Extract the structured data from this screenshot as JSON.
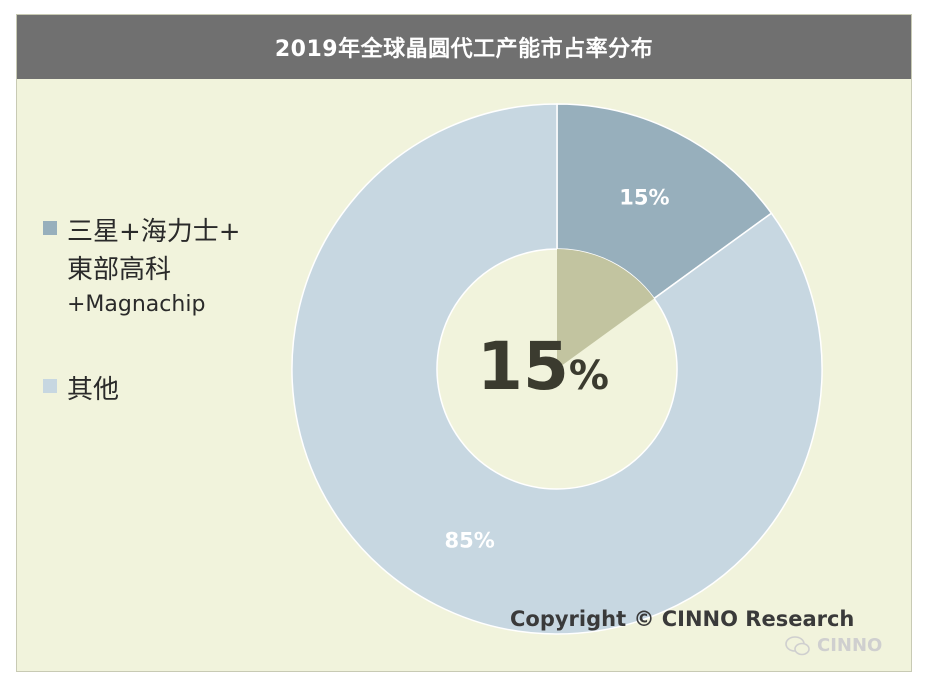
{
  "chart_data": {
    "type": "pie",
    "title": "2019年全球晶圆代工产能市占率分布",
    "categories": [
      "三星+海力士+東部高科+Magnachip",
      "其他"
    ],
    "values": [
      15,
      85
    ],
    "slice_labels": [
      "15%",
      "85%"
    ],
    "center_label": "15%",
    "colors": [
      "#97afbc",
      "#c7d7e1"
    ],
    "center_highlight_color": "#c2c4a0",
    "legend_placement": "left"
  },
  "legend": {
    "item1_line1": "三星+海力士+",
    "item1_line2": "東部高科",
    "item1_line3": "+Magnachip",
    "item2": "其他"
  },
  "footer": {
    "copyright": "Copyright © CINNO Research",
    "watermark": "CINNO"
  },
  "colors": {
    "background": "#f1f3dc",
    "title_bar": "#707070"
  }
}
